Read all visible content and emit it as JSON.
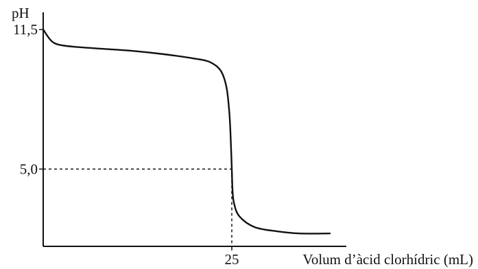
{
  "chart_data": {
    "type": "line",
    "title": "",
    "xlabel": "Volum d’àcid clorhídric (mL)",
    "ylabel": "pH",
    "x_ticks": [
      {
        "value": 25,
        "label": "25"
      }
    ],
    "y_ticks": [
      {
        "value": 5.0,
        "label": "5,0"
      },
      {
        "value": 11.5,
        "label": "11,5"
      }
    ],
    "xlim": [
      0,
      40
    ],
    "ylim": [
      1.4,
      12.3
    ],
    "grid": false,
    "legend": "none",
    "guides": [
      {
        "x": 25,
        "y": 5.0
      }
    ],
    "series": [
      {
        "line_color": "#111111",
        "points": [
          {
            "x": 0,
            "y": 11.5
          },
          {
            "x": 1,
            "y": 11.0
          },
          {
            "x": 2,
            "y": 10.8
          },
          {
            "x": 4,
            "y": 10.7
          },
          {
            "x": 8,
            "y": 10.6
          },
          {
            "x": 12,
            "y": 10.5
          },
          {
            "x": 16,
            "y": 10.35
          },
          {
            "x": 20,
            "y": 10.15
          },
          {
            "x": 22,
            "y": 10.0
          },
          {
            "x": 23.5,
            "y": 9.6
          },
          {
            "x": 24.3,
            "y": 8.8
          },
          {
            "x": 24.7,
            "y": 7.5
          },
          {
            "x": 24.9,
            "y": 6.0
          },
          {
            "x": 25,
            "y": 5.0
          },
          {
            "x": 25.1,
            "y": 4.0
          },
          {
            "x": 25.3,
            "y": 3.4
          },
          {
            "x": 26,
            "y": 2.8
          },
          {
            "x": 28,
            "y": 2.3
          },
          {
            "x": 31,
            "y": 2.1
          },
          {
            "x": 34,
            "y": 2.0
          },
          {
            "x": 38,
            "y": 2.0
          }
        ]
      }
    ]
  }
}
